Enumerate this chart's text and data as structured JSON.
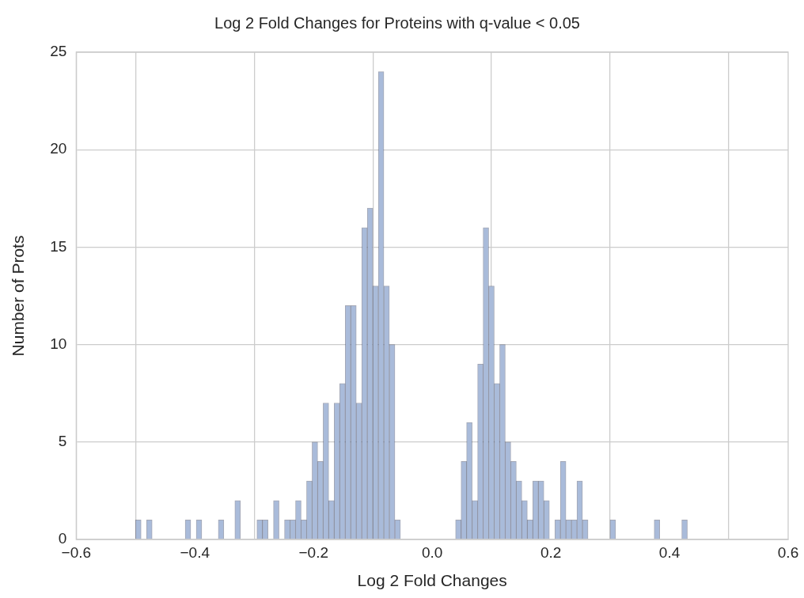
{
  "chart_data": {
    "type": "histogram",
    "title": "Log 2 Fold Changes for Proteins with q-value < 0.05",
    "xlabel": "Log 2 Fold Changes",
    "ylabel": "Number of Prots",
    "bins": [
      -0.5,
      -0.4907,
      -0.4814,
      -0.4721,
      -0.4628,
      -0.4535,
      -0.4442,
      -0.4349,
      -0.4256,
      -0.4163,
      -0.407,
      -0.3977,
      -0.3884,
      -0.3791,
      -0.3698,
      -0.3605,
      -0.3512,
      -0.3419,
      -0.3326,
      -0.3233,
      -0.314,
      -0.3047,
      -0.2954,
      -0.2861,
      -0.2768,
      -0.2675,
      -0.2582,
      -0.2489,
      -0.2396,
      -0.2303,
      -0.221,
      -0.2117,
      -0.2024,
      -0.1931,
      -0.1838,
      -0.1745,
      -0.1652,
      -0.1559,
      -0.1466,
      -0.1373,
      -0.128,
      -0.1187,
      -0.1094,
      -0.1001,
      -0.0908,
      -0.0815,
      -0.0722,
      -0.0629,
      -0.0536,
      -0.0443,
      -0.035,
      -0.0257,
      -0.0164,
      -0.0071,
      0.0022,
      0.0115,
      0.0208,
      0.0301,
      0.0394,
      0.0487,
      0.058,
      0.0673,
      0.0766,
      0.0859,
      0.0952,
      0.1045,
      0.1138,
      0.1231,
      0.1324,
      0.1417,
      0.151,
      0.1603,
      0.1696,
      0.1789,
      0.1882,
      0.1975,
      0.2068,
      0.2161,
      0.2254,
      0.2347,
      0.244,
      0.2533,
      0.2626,
      0.2719,
      0.2812,
      0.2905,
      0.2998,
      0.3091,
      0.3184,
      0.3277,
      0.337,
      0.3463,
      0.3556,
      0.3649,
      0.3742,
      0.3835,
      0.3928,
      0.4021,
      0.4114,
      0.4207,
      0.43
    ],
    "values": [
      1,
      0,
      1,
      0,
      0,
      0,
      0,
      0,
      0,
      1,
      0,
      1,
      0,
      0,
      0,
      1,
      0,
      0,
      2,
      0,
      0,
      0,
      1,
      1,
      0,
      2,
      0,
      1,
      1,
      2,
      1,
      3,
      5,
      4,
      7,
      2,
      7,
      8,
      12,
      12,
      7,
      16,
      17,
      13,
      24,
      13,
      10,
      1,
      0,
      0,
      0,
      0,
      0,
      0,
      0,
      0,
      0,
      0,
      1,
      4,
      6,
      2,
      9,
      16,
      13,
      8,
      10,
      5,
      4,
      3,
      2,
      1,
      3,
      3,
      2,
      0,
      1,
      4,
      1,
      1,
      3,
      1,
      0,
      0,
      0,
      0,
      1,
      0,
      0,
      0,
      0,
      0,
      0,
      0,
      1,
      0,
      0,
      0,
      0,
      1
    ],
    "color": "#a9bbda",
    "xlim": [
      -0.6,
      0.6
    ],
    "xticks": [
      {
        "value": -0.6,
        "label": "−0.6"
      },
      {
        "value": -0.4,
        "label": "−0.4"
      },
      {
        "value": -0.2,
        "label": "−0.2"
      },
      {
        "value": 0,
        "label": "0.0"
      },
      0.2,
      0.4,
      0.6
    ],
    "ylim": [
      0,
      25
    ],
    "yticks": [
      0,
      5,
      10,
      15,
      20,
      25
    ],
    "grid": true
  }
}
